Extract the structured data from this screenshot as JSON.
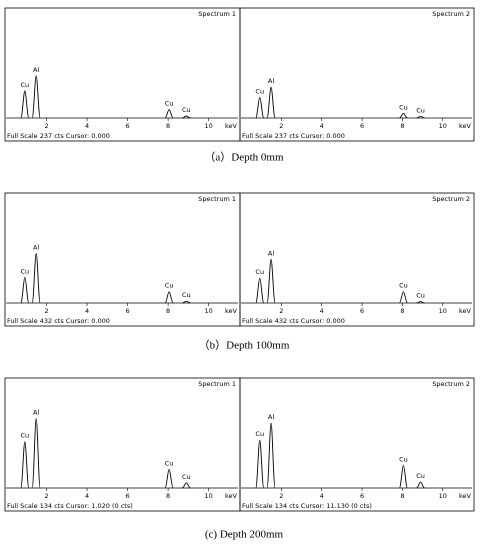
{
  "captions": [
    "（a）Depth 0mm",
    "（b）Depth 100mm",
    "(c) Depth 200mm"
  ],
  "chart_data": [
    {
      "type": "spectrum",
      "title": "Spectrum 1",
      "footer": "Full Scale 237 cts Cursor: 0.000",
      "x_label": "keV",
      "xlim": [
        0,
        11.4
      ],
      "xticks": [
        2,
        4,
        6,
        8,
        10
      ],
      "ylim": [
        0,
        237
      ],
      "x": [
        0.93,
        1.49,
        8.05,
        8.9
      ],
      "values": [
        64,
        100,
        20,
        5
      ],
      "peak_labels": [
        "Cu",
        "Al",
        "Cu",
        "Cu"
      ]
    },
    {
      "type": "spectrum",
      "title": "Spectrum 2",
      "footer": "Full Scale 237 cts Cursor: 0.000",
      "x_label": "keV",
      "xlim": [
        0,
        11.4
      ],
      "xticks": [
        2,
        4,
        6,
        8,
        10
      ],
      "ylim": [
        0,
        237
      ],
      "x": [
        0.93,
        1.49,
        8.05,
        8.9
      ],
      "values": [
        49,
        73,
        11,
        4
      ],
      "peak_labels": [
        "Cu",
        "Al",
        "Cu",
        "Cu"
      ]
    },
    {
      "type": "spectrum",
      "title": "Spectrum 1",
      "footer": "Full Scale 432 cts Cursor: 0.000",
      "x_label": "keV",
      "xlim": [
        0,
        11.4
      ],
      "xticks": [
        2,
        4,
        6,
        8,
        10
      ],
      "ylim": [
        0,
        432
      ],
      "x": [
        0.93,
        1.49,
        8.05,
        8.9
      ],
      "values": [
        111,
        214,
        49,
        8
      ],
      "peak_labels": [
        "Cu",
        "Al",
        "Cu",
        "Cu"
      ]
    },
    {
      "type": "spectrum",
      "title": "Spectrum 2",
      "footer": "Full Scale 432 cts Cursor: 0.000",
      "x_label": "keV",
      "xlim": [
        0,
        11.4
      ],
      "xticks": [
        2,
        4,
        6,
        8,
        10
      ],
      "ylim": [
        0,
        432
      ],
      "x": [
        0.93,
        1.49,
        8.05,
        8.9
      ],
      "values": [
        107,
        189,
        49,
        6
      ],
      "peak_labels": [
        "Cu",
        "Al",
        "Cu",
        "Cu"
      ]
    },
    {
      "type": "spectrum",
      "title": "Spectrum 1",
      "footer": "Full Scale 134 cts Cursor: 1.020  (0 cts)",
      "x_label": "keV",
      "xlim": [
        0,
        11.4
      ],
      "xticks": [
        2,
        4,
        6,
        8,
        10
      ],
      "ylim": [
        0,
        134
      ],
      "x": [
        0.93,
        1.49,
        8.05,
        8.9
      ],
      "values": [
        62,
        93,
        25,
        7
      ],
      "peak_labels": [
        "Cu",
        "Al",
        "Cu",
        "Cu"
      ]
    },
    {
      "type": "spectrum",
      "title": "Spectrum 2",
      "footer": "Full Scale 134 cts Cursor: 11.130  (0 cts)",
      "x_label": "keV",
      "xlim": [
        0,
        11.4
      ],
      "xticks": [
        2,
        4,
        6,
        8,
        10
      ],
      "ylim": [
        0,
        134
      ],
      "x": [
        0.93,
        1.49,
        8.05,
        8.9
      ],
      "values": [
        64,
        87,
        30,
        8
      ],
      "peak_labels": [
        "Cu",
        "Al",
        "Cu",
        "Cu"
      ]
    }
  ]
}
